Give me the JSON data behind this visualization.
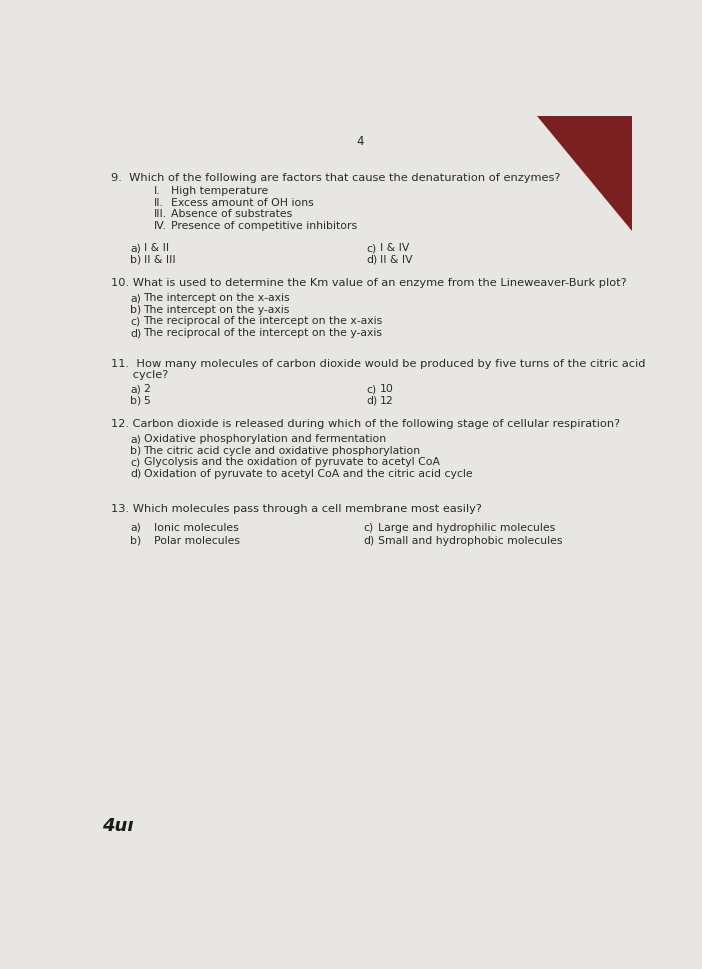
{
  "page_number": "4",
  "bg_color": "#e8e6e3",
  "text_color": "#2a2a2a",
  "corner_color": "#7B2020",
  "font_size_question": 8.2,
  "font_size_option": 7.8,
  "font_size_page": 8.5,
  "q9_q": "9.  Which of the following are factors that cause the denaturation of enzymes?",
  "q9_sub": [
    [
      "I.",
      "High temperature"
    ],
    [
      "II.",
      "Excess amount of OH ions"
    ],
    [
      "III.",
      "Absence of substrates"
    ],
    [
      "IV.",
      "Presence of competitive inhibitors"
    ]
  ],
  "q9_opts": [
    [
      "a)",
      "I & II"
    ],
    [
      "b)",
      "II & III"
    ],
    [
      "c)",
      "I & IV"
    ],
    [
      "d)",
      "II & IV"
    ]
  ],
  "q10_q": "10. What is used to determine the Km value of an enzyme from the Lineweaver-Burk plot?",
  "q10_opts": [
    [
      "a)",
      "The intercept on the x-axis"
    ],
    [
      "b)",
      "The intercept on the y-axis"
    ],
    [
      "c)",
      "The reciprocal of the intercept on the x-axis"
    ],
    [
      "d)",
      "The reciprocal of the intercept on the y-axis"
    ]
  ],
  "q11_q1": "11.  How many molecules of carbon dioxide would be produced by five turns of the citric acid",
  "q11_q2": "      cycle?",
  "q11_opts": [
    [
      "a)",
      "2"
    ],
    [
      "b)",
      "5"
    ],
    [
      "c)",
      "10"
    ],
    [
      "d)",
      "12"
    ]
  ],
  "q12_q": "12. Carbon dioxide is released during which of the following stage of cellular respiration?",
  "q12_opts": [
    [
      "a)",
      "Oxidative phosphorylation and fermentation"
    ],
    [
      "b)",
      "The citric acid cycle and oxidative phosphorylation"
    ],
    [
      "c)",
      "Glycolysis and the oxidation of pyruvate to acetyl CoA"
    ],
    [
      "d)",
      "Oxidation of pyruvate to acetyl CoA and the citric acid cycle"
    ]
  ],
  "q13_q": "13. Which molecules pass through a cell membrane most easily?",
  "q13_opts": [
    [
      "a)",
      "Ionic molecules"
    ],
    [
      "b)",
      "Polar molecules"
    ],
    [
      "c)",
      "Large and hydrophilic molecules"
    ],
    [
      "d)",
      "Small and hydrophobic molecules"
    ]
  ],
  "footer": "4uı"
}
